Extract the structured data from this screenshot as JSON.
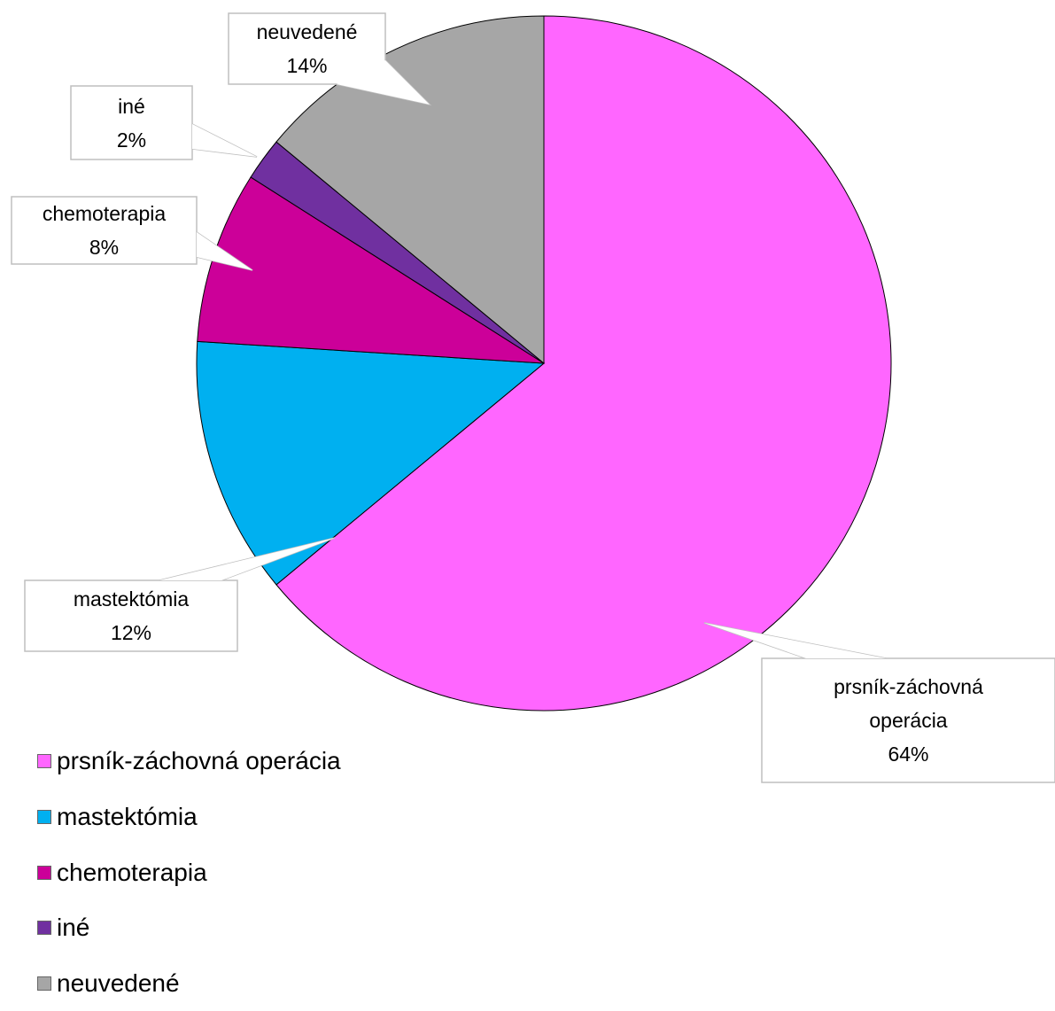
{
  "chart_data": {
    "type": "pie",
    "categories": [
      "prsník-záchovná operácia",
      "mastektómia",
      "chemoterapia",
      "iné",
      "neuvedené"
    ],
    "values": [
      64,
      12,
      8,
      2,
      14
    ],
    "value_labels": [
      "64%",
      "12%",
      "8%",
      "2%",
      "14%"
    ],
    "colors": [
      "#ff66ff",
      "#00b0f0",
      "#cc0099",
      "#7030a0",
      "#a6a6a6"
    ],
    "legend": "bottom-left"
  }
}
